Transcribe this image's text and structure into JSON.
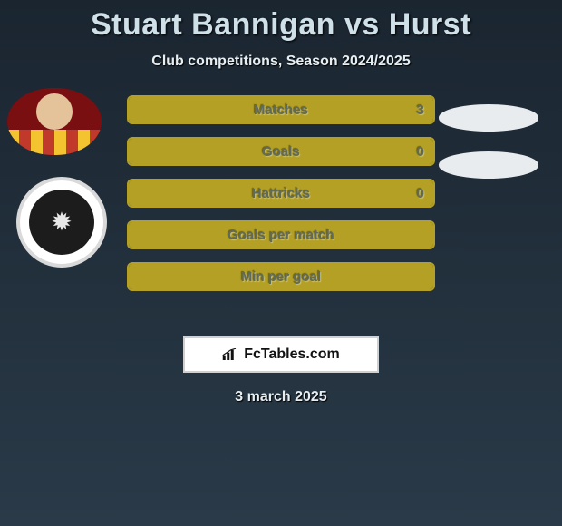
{
  "title": "Stuart Bannigan vs Hurst",
  "subtitle": "Club competitions, Season 2024/2025",
  "footer_date": "3 march 2025",
  "brand": {
    "text": "FcTables.com"
  },
  "colors": {
    "bar_fill": "#b3a024",
    "bar_border": "#b3a024",
    "bar_text": "#5f6a5a",
    "oval_bg": "#e8ecef"
  },
  "bars": [
    {
      "label": "Matches",
      "value": "3",
      "fill_pct": 100,
      "show_value": true
    },
    {
      "label": "Goals",
      "value": "0",
      "fill_pct": 100,
      "show_value": true
    },
    {
      "label": "Hattricks",
      "value": "0",
      "fill_pct": 100,
      "show_value": true
    },
    {
      "label": "Goals per match",
      "value": "",
      "fill_pct": 100,
      "show_value": false
    },
    {
      "label": "Min per goal",
      "value": "",
      "fill_pct": 100,
      "show_value": false
    }
  ],
  "right_ovals_count": 2
}
